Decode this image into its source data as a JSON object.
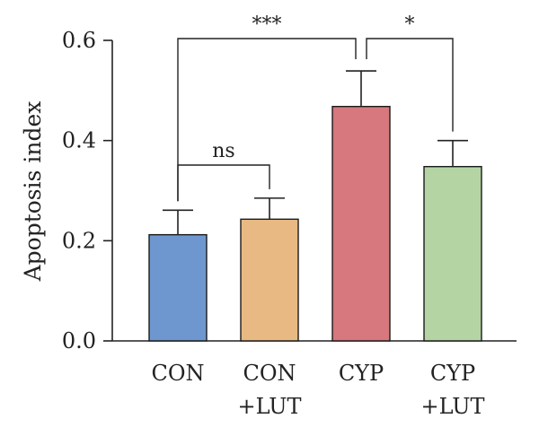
{
  "chart_data": {
    "type": "bar",
    "categories": [
      [
        "CON"
      ],
      [
        "CON",
        "+LUT"
      ],
      [
        "CYP"
      ],
      [
        "CYP",
        "+LUT"
      ]
    ],
    "values": [
      0.212,
      0.243,
      0.468,
      0.348
    ],
    "errors": [
      0.049,
      0.042,
      0.071,
      0.052
    ],
    "colors": [
      "#6f97cf",
      "#e9b983",
      "#d6787d",
      "#b4d4a4"
    ],
    "ylabel": "Apoptosis index",
    "ylim": [
      0,
      0.6
    ],
    "yticks": [
      "0.0",
      "0.2",
      "0.4",
      "0.6"
    ],
    "ytick_values": [
      0,
      0.2,
      0.4,
      0.6
    ],
    "grid": false,
    "significance": [
      {
        "from": 0,
        "to": 1,
        "label": "ns"
      },
      {
        "from": 0,
        "to": 2,
        "label": "***"
      },
      {
        "from": 2,
        "to": 3,
        "label": "*"
      }
    ]
  }
}
